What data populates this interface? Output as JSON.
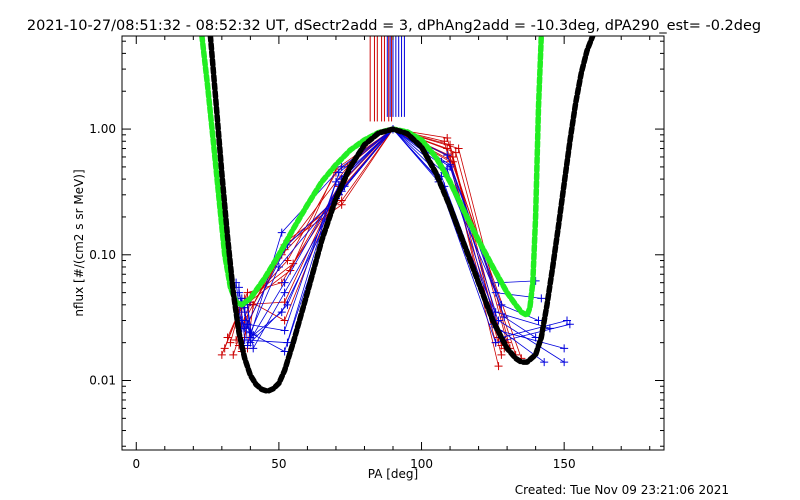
{
  "chart_data": {
    "type": "scatter",
    "title": "2021-10-27/08:51:32 - 08:52:32 UT, dSectr2add = 3, dPhAng2add = -10.3deg, dPA290_est= -0.2deg",
    "xlabel": "PA [deg]",
    "ylabel": "nflux [#/(cm2 s sr MeV)]",
    "footer": "Created: Tue Nov 09 23:21:06 2021",
    "xlim": [
      -5,
      185
    ],
    "ylim": [
      0.0028,
      5.5
    ],
    "yscale": "log",
    "xticks": [
      0,
      50,
      100,
      150
    ],
    "xtick_labels": [
      "0",
      "50",
      "100",
      "150"
    ],
    "yticks": [
      0.01,
      0.1,
      1.0
    ],
    "ytick_labels": [
      "0.01",
      "0.10",
      "1.00"
    ],
    "colors": {
      "red": "#cc0000",
      "blue": "#0000dd",
      "green": "#22ee22",
      "black": "#000000"
    },
    "vlines": {
      "red_x": [
        82,
        83.5,
        84.5,
        86,
        87,
        88.5,
        89.5
      ],
      "blue_x": [
        88,
        89,
        90,
        91,
        92,
        93,
        94
      ],
      "red_y_low": 1.15,
      "blue_y_low": 1.25
    },
    "series": [
      {
        "color": "red",
        "style": "line-plus",
        "lines": [
          {
            "x": [
              30,
              37,
              52,
              72,
              90,
              110,
              127
            ],
            "y": [
              0.016,
              0.04,
              0.042,
              0.4,
              1.0,
              0.55,
              0.013
            ]
          },
          {
            "x": [
              31,
              38,
              52,
              71,
              90,
              109,
              128
            ],
            "y": [
              0.018,
              0.045,
              0.03,
              0.35,
              1.0,
              0.7,
              0.016
            ]
          },
          {
            "x": [
              32,
              39,
              51,
              73,
              90,
              111,
              129
            ],
            "y": [
              0.022,
              0.05,
              0.06,
              0.42,
              1.0,
              0.6,
              0.018
            ]
          },
          {
            "x": [
              33,
              36,
              53,
              70,
              90,
              108,
              126
            ],
            "y": [
              0.02,
              0.035,
              0.09,
              0.45,
              1.0,
              0.8,
              0.02
            ]
          },
          {
            "x": [
              34,
              38,
              52,
              72,
              90,
              110,
              127
            ],
            "y": [
              0.016,
              0.03,
              0.12,
              0.25,
              1.0,
              0.75,
              0.022
            ]
          },
          {
            "x": [
              35,
              40,
              51,
              71,
              90,
              112,
              130
            ],
            "y": [
              0.021,
              0.042,
              0.1,
              0.3,
              1.0,
              0.65,
              0.02
            ]
          },
          {
            "x": [
              36,
              37,
              54,
              70,
              90,
              109,
              128
            ],
            "y": [
              0.019,
              0.038,
              0.075,
              0.48,
              1.0,
              0.85,
              0.019
            ]
          },
          {
            "x": [
              37,
              39,
              53,
              72,
              90,
              111,
              133
            ],
            "y": [
              0.017,
              0.028,
              0.13,
              0.27,
              1.0,
              0.55,
              0.016
            ]
          },
          {
            "x": [
              38,
              40,
              55,
              73,
              90,
              113,
              131
            ],
            "y": [
              0.022,
              0.046,
              0.085,
              0.36,
              1.0,
              0.7,
              0.018
            ]
          },
          {
            "x": [
              39,
              41,
              52,
              74,
              90,
              110,
              135
            ],
            "y": [
              0.018,
              0.04,
              0.11,
              0.5,
              1.0,
              0.6,
              0.015
            ]
          }
        ]
      },
      {
        "color": "blue",
        "style": "line-plus",
        "lines": [
          {
            "x": [
              35,
              37,
              52,
              71,
              90,
              107,
              127,
              140
            ],
            "y": [
              0.06,
              0.026,
              0.017,
              0.45,
              1.0,
              0.55,
              0.06,
              0.062
            ]
          },
          {
            "x": [
              36,
              38,
              53,
              72,
              90,
              108,
              126,
              142
            ],
            "y": [
              0.055,
              0.021,
              0.02,
              0.4,
              1.0,
              0.45,
              0.05,
              0.045
            ]
          },
          {
            "x": [
              37,
              39,
              52,
              70,
              90,
              109,
              128,
              141
            ],
            "y": [
              0.045,
              0.028,
              0.025,
              0.38,
              1.0,
              0.62,
              0.04,
              0.03
            ]
          },
          {
            "x": [
              38,
              40,
              51,
              73,
              90,
              110,
              126,
              145
            ],
            "y": [
              0.035,
              0.022,
              0.035,
              0.35,
              1.0,
              0.5,
              0.035,
              0.026
            ]
          },
          {
            "x": [
              39,
              41,
              52,
              72,
              90,
              106,
              127,
              150
            ],
            "y": [
              0.04,
              0.018,
              0.05,
              0.32,
              1.0,
              0.4,
              0.03,
              0.014
            ]
          },
          {
            "x": [
              36,
              40,
              50,
              71,
              90,
              108,
              125,
              143
            ],
            "y": [
              0.05,
              0.024,
              0.08,
              0.3,
              1.0,
              0.35,
              0.028,
              0.014
            ]
          },
          {
            "x": [
              37,
              38,
              53,
              70,
              90,
              107,
              127,
              150
            ],
            "y": [
              0.03,
              0.026,
              0.12,
              0.28,
              1.0,
              0.42,
              0.025,
              0.018
            ]
          },
          {
            "x": [
              38,
              39,
              51,
              72,
              90,
              109,
              128,
              151
            ],
            "y": [
              0.038,
              0.019,
              0.15,
              0.5,
              1.0,
              0.48,
              0.022,
              0.03
            ]
          },
          {
            "x": [
              36,
              41,
              52,
              73,
              90,
              106,
              126,
              152
            ],
            "y": [
              0.032,
              0.023,
              0.06,
              0.42,
              1.0,
              0.38,
              0.02,
              0.028
            ]
          },
          {
            "x": [
              39,
              40,
              53,
              71,
              90,
              110,
              129,
              140
            ],
            "y": [
              0.042,
              0.02,
              0.04,
              0.36,
              1.0,
              0.52,
              0.032,
              0.022
            ]
          }
        ]
      },
      {
        "color": "green",
        "style": "thick-dashed",
        "x": [
          23,
          25,
          27,
          29,
          31,
          33,
          35,
          37,
          40,
          45,
          50,
          55,
          60,
          65,
          70,
          75,
          80,
          85,
          90,
          95,
          100,
          105,
          110,
          115,
          120,
          125,
          130,
          133,
          135,
          137,
          138,
          139,
          140,
          141,
          142
        ],
        "y": [
          5.5,
          2.2,
          0.8,
          0.28,
          0.1,
          0.055,
          0.042,
          0.04,
          0.045,
          0.065,
          0.1,
          0.16,
          0.25,
          0.38,
          0.52,
          0.68,
          0.82,
          0.94,
          1.0,
          0.95,
          0.82,
          0.6,
          0.38,
          0.22,
          0.13,
          0.08,
          0.05,
          0.04,
          0.035,
          0.033,
          0.038,
          0.06,
          0.2,
          1.5,
          5.5
        ]
      },
      {
        "color": "black",
        "style": "thick-dashed",
        "x": [
          26,
          28,
          30,
          32,
          34,
          36,
          38,
          40,
          42,
          44,
          46,
          48,
          50,
          52,
          55,
          60,
          65,
          70,
          75,
          80,
          85,
          90,
          95,
          100,
          105,
          110,
          115,
          120,
          125,
          128,
          130,
          133,
          135,
          137,
          140,
          142,
          144,
          146,
          148,
          150,
          152,
          154,
          156,
          158,
          160
        ],
        "y": [
          5.5,
          1.6,
          0.45,
          0.14,
          0.05,
          0.024,
          0.015,
          0.011,
          0.0093,
          0.0085,
          0.0082,
          0.0086,
          0.0095,
          0.012,
          0.02,
          0.05,
          0.13,
          0.28,
          0.5,
          0.75,
          0.93,
          1.0,
          0.92,
          0.72,
          0.45,
          0.24,
          0.12,
          0.06,
          0.03,
          0.022,
          0.018,
          0.015,
          0.014,
          0.014,
          0.016,
          0.022,
          0.04,
          0.08,
          0.17,
          0.37,
          0.8,
          1.6,
          2.8,
          4.2,
          5.5
        ]
      }
    ]
  }
}
